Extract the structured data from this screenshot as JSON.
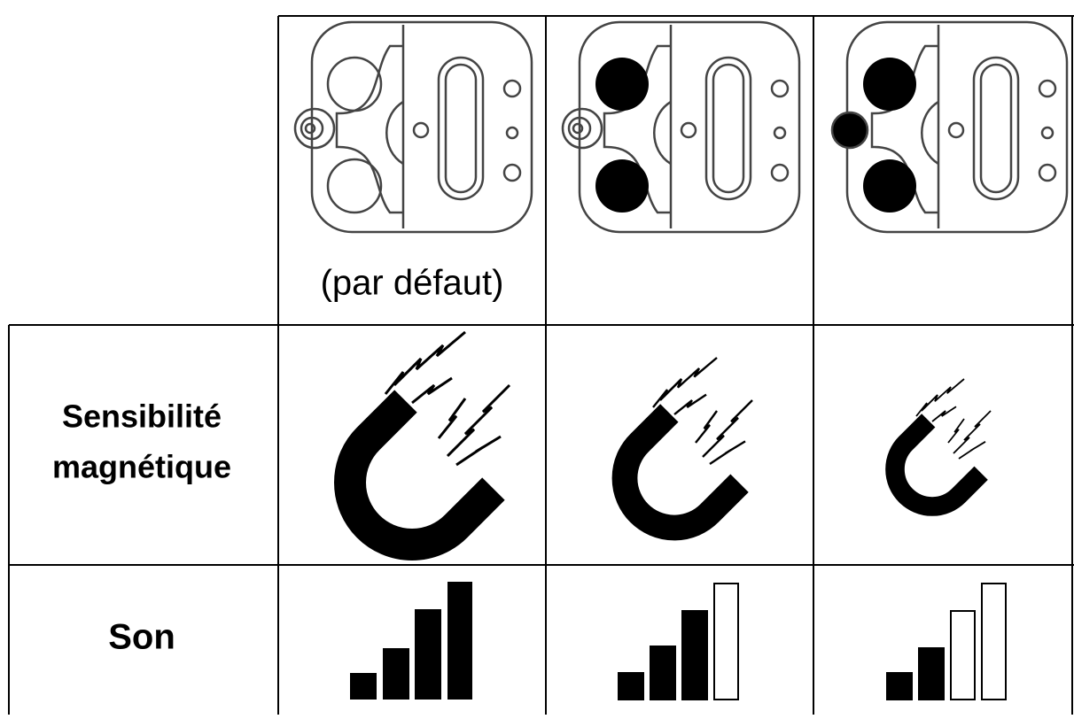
{
  "table": {
    "header": {
      "note": "(par défaut)"
    },
    "rows": [
      {
        "label": [
          "Sensibilité",
          "magnétique"
        ]
      },
      {
        "label": "Son"
      }
    ]
  }
}
